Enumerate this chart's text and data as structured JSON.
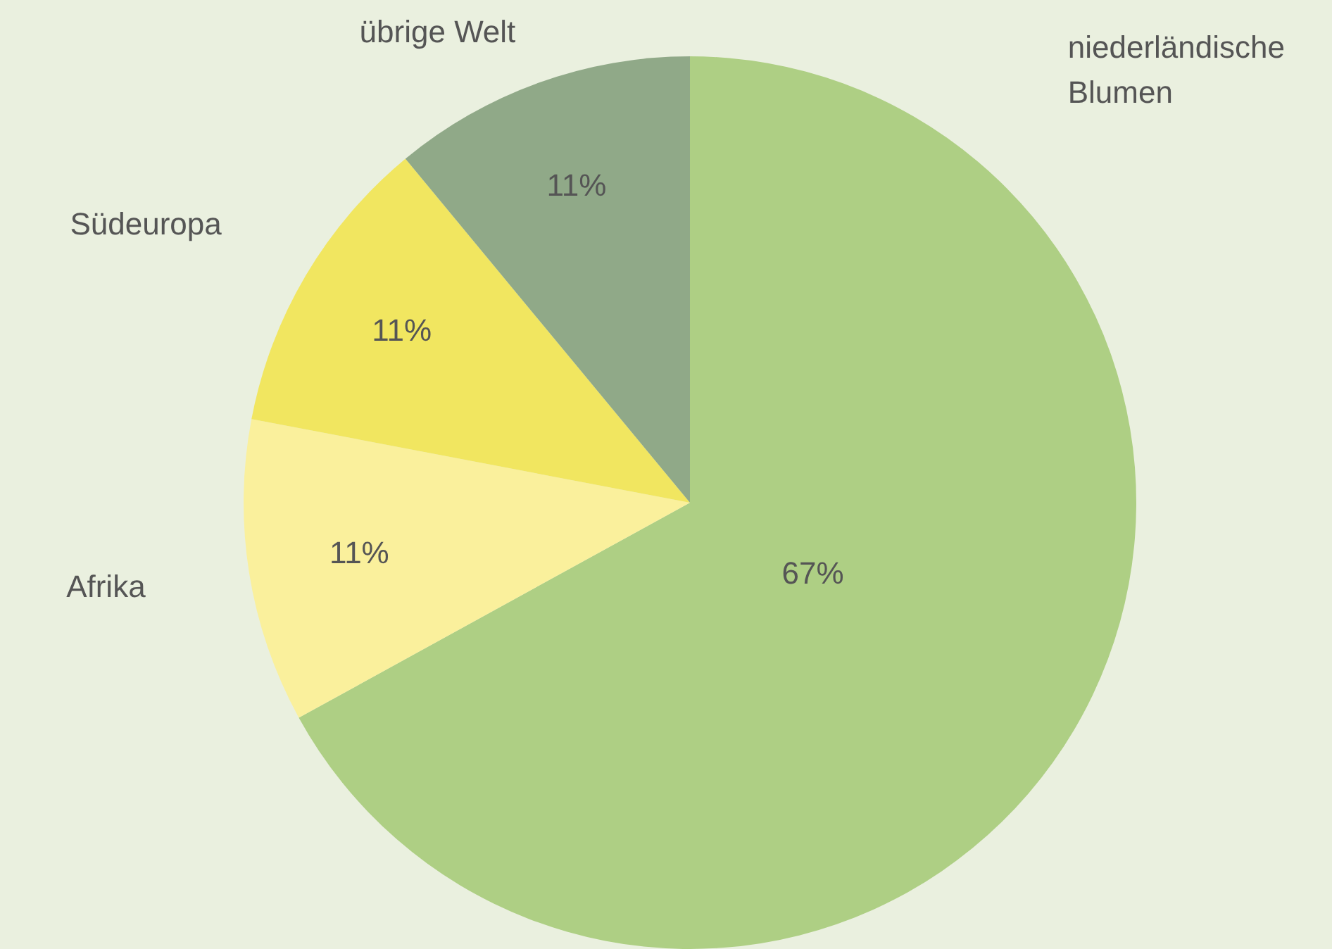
{
  "chart_data": {
    "type": "pie",
    "categories": [
      "niederländische Blumen",
      "Afrika",
      "Südeuropa",
      "übrige Welt"
    ],
    "values": [
      67,
      11,
      11,
      11
    ],
    "colors": [
      "#aecf84",
      "#faf09c",
      "#f1e660",
      "#90a988"
    ],
    "value_labels": [
      "67%",
      "11%",
      "11%",
      "11%"
    ]
  }
}
